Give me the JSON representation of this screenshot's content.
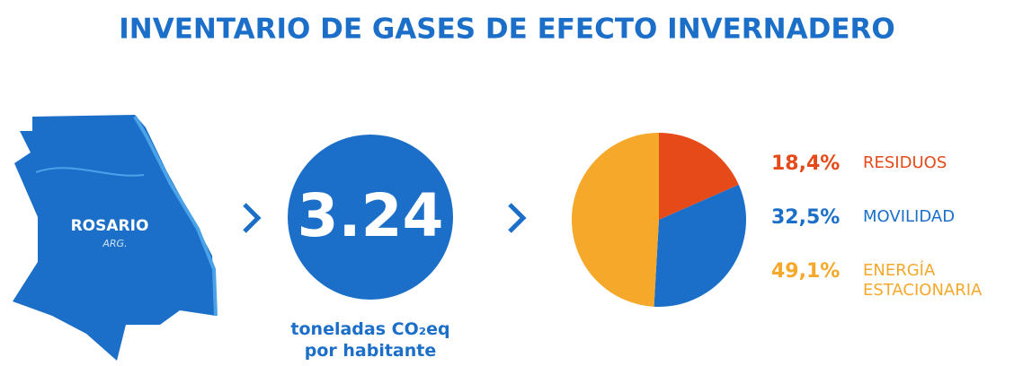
{
  "chart_data": {
    "type": "pie",
    "title": "INVENTARIO DE GASES DE EFECTO INVERNADERO",
    "map_label": "ROSARIO",
    "map_sublabel": "ARG.",
    "stat_value": 3.24,
    "stat_caption": [
      "toneladas CO₂eq",
      "por habitante"
    ],
    "categories": [
      "RESIDUOS",
      "MOVILIDAD",
      "ENERGÍA ESTACIONARIA"
    ],
    "values": [
      18.4,
      32.5,
      49.1
    ],
    "value_labels": [
      "18,4%",
      "32,5%",
      "49,1%"
    ],
    "colors": [
      "#e64a19",
      "#1c6fc8",
      "#f5a82a"
    ]
  }
}
